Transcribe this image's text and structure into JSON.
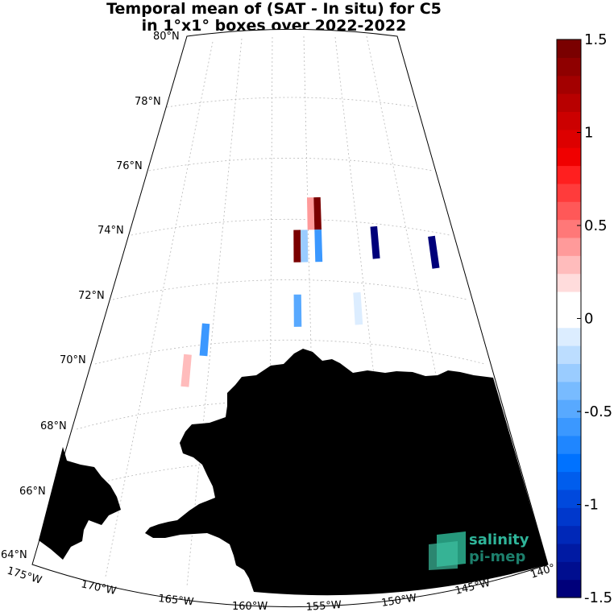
{
  "title": {
    "line1": "Temporal mean of (SAT - In situ) for C5",
    "line2": "in 1°x1° boxes over 2022-2022"
  },
  "lat_labels": [
    "80°N",
    "78°N",
    "76°N",
    "74°N",
    "72°N",
    "70°N",
    "68°N",
    "66°N",
    "64°N"
  ],
  "lon_labels": [
    "175°W",
    "170°W",
    "165°W",
    "160°W",
    "155°W",
    "150°W",
    "145°W",
    "140°"
  ],
  "colorbar": {
    "ticks": [
      "1.5",
      "1",
      "0.5",
      "0",
      "-0.5",
      "-1",
      "-1.5"
    ],
    "range": [
      -1.5,
      1.5
    ],
    "colors": {
      "high": "#7a0000",
      "low": "#00007a",
      "zero": "#ffffff"
    }
  },
  "land_color": "#808080",
  "boxes": [
    {
      "lat": 74.5,
      "lon": -156.0,
      "value": 0.4
    },
    {
      "lat": 74.5,
      "lon": -155.5,
      "value": 1.5
    },
    {
      "lat": 73.5,
      "lon": -157.0,
      "value": 1.5
    },
    {
      "lat": 73.5,
      "lon": -156.5,
      "value": -0.3
    },
    {
      "lat": 73.5,
      "lon": -155.5,
      "value": -0.6
    },
    {
      "lat": 73.5,
      "lon": -151.5,
      "value": -1.5
    },
    {
      "lat": 73.0,
      "lon": -147.5,
      "value": -1.5
    },
    {
      "lat": 71.5,
      "lon": -157.0,
      "value": -0.5
    },
    {
      "lat": 71.5,
      "lon": -153.0,
      "value": -0.1
    },
    {
      "lat": 70.5,
      "lon": -163.0,
      "value": -0.6
    },
    {
      "lat": 69.5,
      "lon": -164.0,
      "value": 0.3
    }
  ],
  "logo": {
    "line1": "salinity",
    "line2": "pi-mep"
  }
}
